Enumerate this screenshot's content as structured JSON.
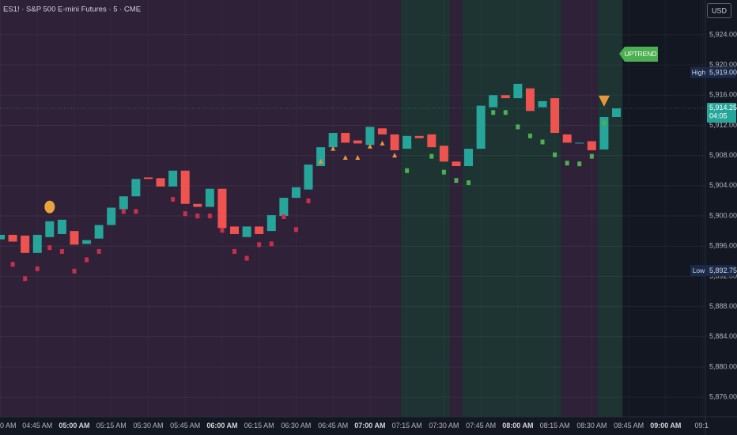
{
  "chart_data": {
    "type": "candlestick",
    "title": "ES1! · S&P 500 E-mini Futures · 5 · CME",
    "currency": "USD",
    "annotation": "UPTREND",
    "categories": [
      "0 AM",
      null,
      null,
      "04:45 AM",
      null,
      null,
      "05:00 AM",
      null,
      null,
      "05:15 AM",
      null,
      null,
      "05:30 AM",
      null,
      null,
      "05:45 AM",
      null,
      null,
      "06:00 AM",
      null,
      null,
      "06:15 AM",
      null,
      null,
      "06:30 AM",
      null,
      null,
      "06:45 AM",
      null,
      null,
      "07:00 AM",
      null,
      null,
      "07:15 AM",
      null,
      null,
      "07:30 AM",
      null,
      null,
      "07:45 AM",
      null,
      null,
      "08:00 AM",
      null,
      null,
      "08:15 AM",
      null,
      null,
      "08:30 AM",
      null,
      null,
      "08:45 AM",
      null,
      null,
      "09:00 AM",
      null,
      null,
      "09:1"
    ],
    "major_ticks": [
      6,
      18,
      30,
      42,
      54
    ],
    "open": [
      5896.9,
      5897.5,
      5897.4,
      5895.1,
      5897.2,
      5897.6,
      5898.0,
      5896.3,
      5897.0,
      5898.8,
      5900.9,
      5902.6,
      5905.1,
      5905.0,
      5903.9,
      5906.0,
      5901.6,
      5901.2,
      5903.6,
      5898.6,
      5897.2,
      5898.6,
      5898.0,
      5900.0,
      5902.4,
      5903.5,
      5906.6,
      5909.1,
      5911.0,
      5910.0,
      5909.4,
      5911.6,
      5910.8,
      5908.9,
      5910.6,
      5910.8,
      5909.3,
      5907.2,
      5906.6,
      5908.9,
      5914.4,
      5916.0,
      5915.6,
      5916.9,
      5914.4,
      5915.6,
      5910.8,
      5909.6,
      5909.9,
      5908.8,
      5913.1,
      null,
      null,
      null,
      null,
      null,
      null,
      null
    ],
    "high": {
      "label": "High",
      "value": 5919,
      "value_label": "5,919.00"
    },
    "low": {
      "label": "Low",
      "value": 5892.75,
      "value_label": "5,892.75"
    },
    "close": [
      5897.5,
      5896.6,
      5895.1,
      5897.5,
      5899.3,
      5899.5,
      5896.2,
      5896.8,
      5898.8,
      5901.1,
      5902.6,
      5904.9,
      5904.9,
      5903.9,
      5906,
      5901.6,
      5901.2,
      5903.6,
      5898.4,
      5897.6,
      5898.6,
      5897.6,
      5900.1,
      5902.4,
      5903.8,
      5906.8,
      5909.1,
      5911,
      5909.7,
      5909.6,
      5911.8,
      5910.8,
      5908.7,
      5910.6,
      5910.3,
      5909.1,
      5907.2,
      5906.6,
      5908.9,
      5914.6,
      5916,
      5915.6,
      5917.5,
      5913.9,
      5915.2,
      5911,
      5909.7,
      5909.7,
      5908.7,
      5913.1,
      5914.25,
      null,
      null,
      null,
      null,
      null,
      null,
      null
    ],
    "up_color": "#26a69a",
    "down_color": "#ef5350",
    "markers": [
      {
        "shape": "square",
        "color": "#c8304a",
        "values": [
          null,
          5893.6,
          5891.7,
          5893.0,
          5895.8,
          5895.3,
          5892.7,
          5894.2,
          5895.3,
          null,
          5900.6,
          5900.6,
          null,
          null,
          5902.2,
          5900.3,
          5900.0,
          5900.0,
          5898.1,
          5895.3,
          5894.4,
          5896.2,
          5896.3,
          5899.9,
          5898.2,
          5902.0,
          null,
          null,
          null,
          null,
          null,
          null,
          null,
          null,
          null,
          null,
          null,
          null,
          null,
          null,
          null,
          null,
          null,
          null,
          null,
          null,
          null,
          null,
          null,
          null,
          null,
          null,
          null,
          null,
          null,
          null,
          null,
          null
        ]
      },
      {
        "shape": "triangle-up",
        "color": "#e8963d",
        "values": [
          null,
          null,
          null,
          null,
          null,
          null,
          null,
          null,
          null,
          null,
          null,
          null,
          null,
          null,
          null,
          null,
          null,
          null,
          null,
          null,
          null,
          null,
          null,
          null,
          null,
          null,
          5907.2,
          5908.9,
          5907.7,
          5907.7,
          5909.2,
          5909.6,
          5908.0,
          null,
          null,
          null,
          null,
          null,
          null,
          null,
          null,
          null,
          null,
          null,
          null,
          null,
          null,
          null,
          null,
          null,
          null,
          null,
          null,
          null,
          null,
          null,
          null,
          null
        ]
      },
      {
        "shape": "square",
        "color": "#4caf50",
        "values": [
          null,
          null,
          null,
          null,
          null,
          null,
          null,
          null,
          null,
          null,
          null,
          null,
          null,
          null,
          null,
          null,
          null,
          null,
          null,
          null,
          null,
          null,
          null,
          null,
          null,
          null,
          null,
          null,
          null,
          null,
          null,
          null,
          null,
          5906.0,
          null,
          5907.9,
          5905.8,
          5904.7,
          5904.4,
          null,
          5913.7,
          5913.7,
          5911.8,
          5910.6,
          5909.8,
          5908.1,
          5907.0,
          5906.9,
          5907.9,
          5912.3,
          null,
          null,
          null,
          null,
          null,
          null,
          null,
          null
        ]
      },
      {
        "shape": "circle",
        "color": "#e8a33d",
        "values": [
          null,
          null,
          null,
          null,
          5901.2,
          null,
          null,
          null,
          null,
          null,
          null,
          null,
          null,
          null,
          null,
          null,
          null,
          null,
          null,
          null,
          null,
          null,
          null,
          null,
          null,
          null,
          null,
          null,
          null,
          null,
          null,
          null,
          null,
          null,
          null,
          null,
          null,
          null,
          null,
          null,
          null,
          null,
          null,
          null,
          null,
          null,
          null,
          null,
          null,
          null,
          null,
          null,
          null,
          null,
          null,
          null,
          null,
          null
        ]
      },
      {
        "shape": "triangle-down",
        "color": "#e8963d",
        "values": [
          null,
          null,
          null,
          null,
          null,
          null,
          null,
          null,
          null,
          null,
          null,
          null,
          null,
          null,
          null,
          null,
          null,
          null,
          null,
          null,
          null,
          null,
          null,
          null,
          null,
          null,
          null,
          null,
          null,
          null,
          null,
          null,
          null,
          null,
          null,
          null,
          null,
          null,
          null,
          null,
          null,
          null,
          null,
          null,
          null,
          null,
          null,
          null,
          null,
          5915.2,
          null,
          null,
          null,
          null,
          null,
          null,
          null,
          null
        ]
      }
    ],
    "zones": [
      {
        "from": 0,
        "to": 32,
        "color": "#2f2138"
      },
      {
        "from": 33,
        "to": 36,
        "color": "#1d3433"
      },
      {
        "from": 37,
        "to": 37,
        "color": "#2f2138"
      },
      {
        "from": 38,
        "to": 45,
        "color": "#1d3433"
      },
      {
        "from": 46,
        "to": 48,
        "color": "#2f2138"
      },
      {
        "from": 49,
        "to": 50,
        "color": "#1d3433"
      }
    ],
    "ylim": [
      5873.4,
      5928.6
    ],
    "yticks": [
      {
        "value": 5876,
        "label": "5,876.00"
      },
      {
        "value": 5880,
        "label": "5,880.00"
      },
      {
        "value": 5884,
        "label": "5,884.00"
      },
      {
        "value": 5888,
        "label": "5,888.00"
      },
      {
        "value": 5892,
        "label": "5,892.00"
      },
      {
        "value": 5896,
        "label": "5,896.00"
      },
      {
        "value": 5900,
        "label": "5,900.00"
      },
      {
        "value": 5904,
        "label": "5,904.00"
      },
      {
        "value": 5908,
        "label": "5,908.00"
      },
      {
        "value": 5912,
        "label": "5,912.00"
      },
      {
        "value": 5916,
        "label": "5,916.00"
      },
      {
        "value": 5920,
        "label": "5,920.00"
      },
      {
        "value": 5924,
        "label": "5,924.00"
      }
    ],
    "grid": true,
    "last": {
      "value": 5914.25,
      "value_label": "5,914.25",
      "countdown": "04:05"
    }
  }
}
